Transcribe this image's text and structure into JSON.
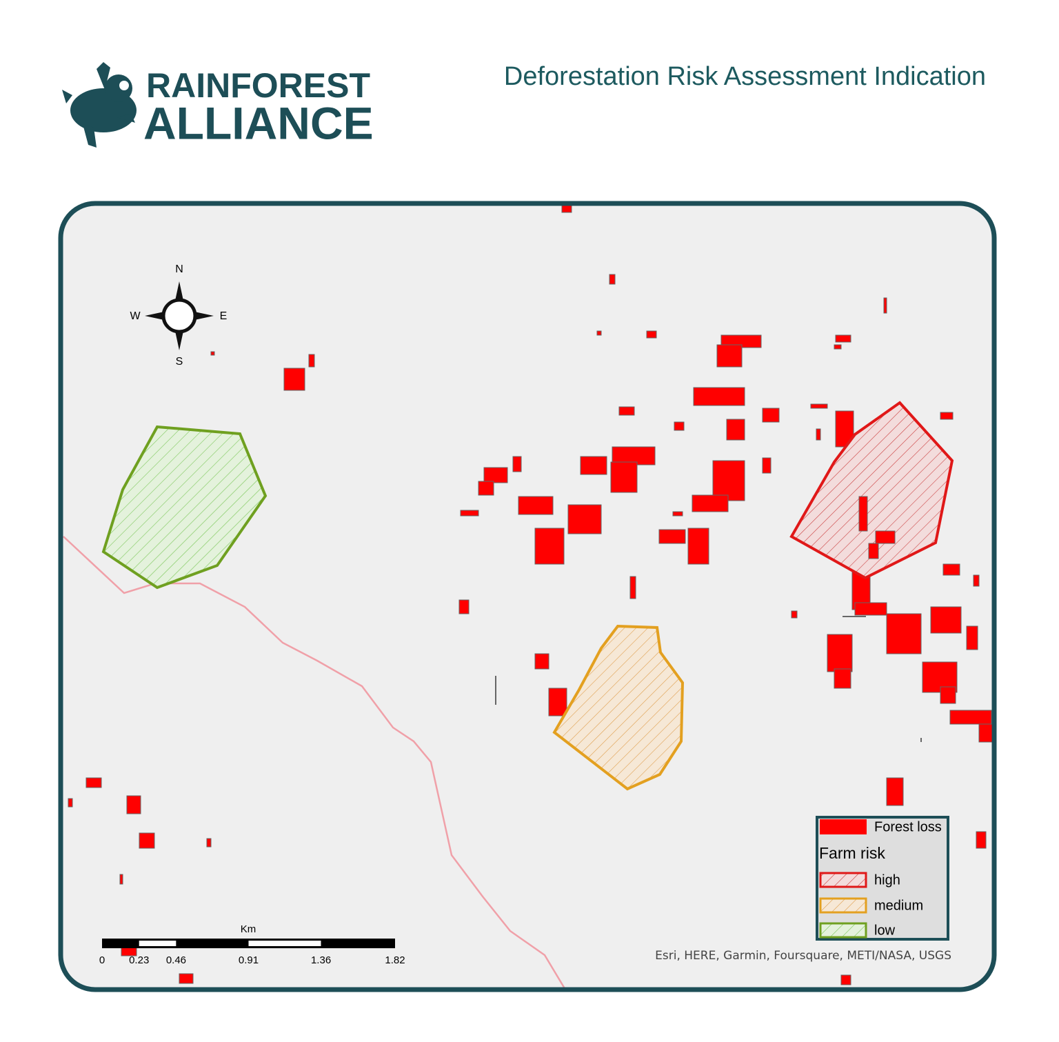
{
  "header": {
    "logo": {
      "line1": "RAINFOREST",
      "line2": "ALLIANCE"
    },
    "title": "Deforestation Risk Assessment Indication"
  },
  "map": {
    "compass": {
      "n": "N",
      "s": "S",
      "e": "E",
      "w": "W"
    },
    "scale_bar": {
      "unit": "Km",
      "ticks": [
        0,
        0.23,
        0.46,
        0.91,
        1.36,
        1.82
      ]
    },
    "legend": {
      "forest_loss": "Forest loss",
      "farm_risk_title": "Farm risk",
      "items": [
        "high",
        "medium",
        "low"
      ]
    },
    "attribution": "Esri, HERE, Garmin, Foursquare, METI/NASA, USGS"
  }
}
